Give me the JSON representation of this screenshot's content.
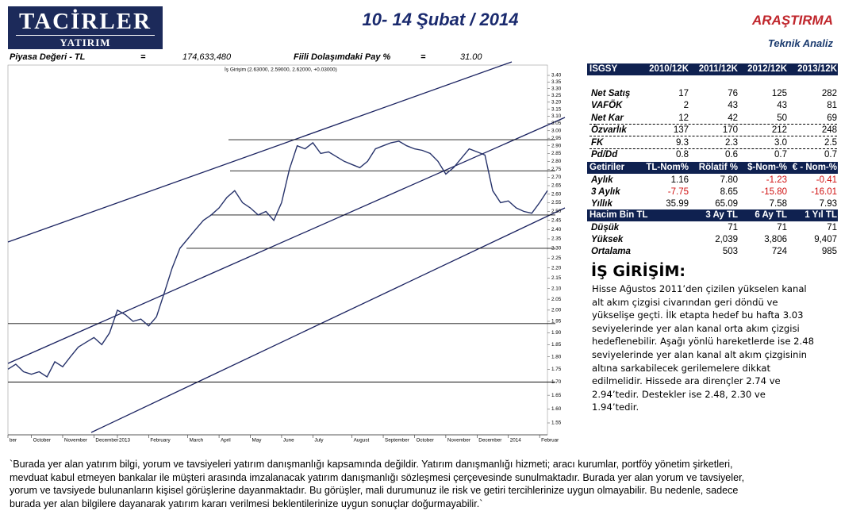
{
  "header": {
    "logo_top": "TACİRLER",
    "logo_bottom": "YATIRIM",
    "title": "10- 14 Şubat / 2014",
    "department": "ARAŞTIRMA",
    "subtitle": "Teknik Analiz"
  },
  "info": {
    "label1": "Piyasa Değeri - TL",
    "eq1": "=",
    "value1": "174,633,480",
    "label2": "Fiili Dolaşımdaki Pay %",
    "eq2": "=",
    "value2": "31.00"
  },
  "chart_data": {
    "type": "line",
    "title": "İş Girişim (2.63000, 2.59000, 2.62000, +0.03000)",
    "color": "#27336b",
    "log_scale": true,
    "values": [
      1.75,
      1.77,
      1.74,
      1.73,
      1.74,
      1.72,
      1.78,
      1.76,
      1.8,
      1.84,
      1.86,
      1.88,
      1.85,
      1.9,
      2.0,
      1.98,
      1.95,
      1.96,
      1.93,
      1.97,
      2.08,
      2.2,
      2.3,
      2.35,
      2.4,
      2.45,
      2.48,
      2.52,
      2.58,
      2.62,
      2.55,
      2.52,
      2.48,
      2.5,
      2.45,
      2.55,
      2.75,
      2.9,
      2.88,
      2.92,
      2.85,
      2.86,
      2.83,
      2.8,
      2.78,
      2.76,
      2.8,
      2.88,
      2.9,
      2.92,
      2.93,
      2.9,
      2.88,
      2.87,
      2.85,
      2.8,
      2.72,
      2.76,
      2.82,
      2.88,
      2.86,
      2.84,
      2.62,
      2.55,
      2.56,
      2.52,
      2.5,
      2.49,
      2.55,
      2.62
    ],
    "xlim": [
      0,
      69
    ],
    "xticks": [
      {
        "value": 0,
        "label": "ber"
      },
      {
        "value": 3,
        "label": "October"
      },
      {
        "value": 7,
        "label": "November"
      },
      {
        "value": 11,
        "label": "December"
      },
      {
        "value": 14,
        "label": "2013"
      },
      {
        "value": 18,
        "label": "February"
      },
      {
        "value": 23,
        "label": "March"
      },
      {
        "value": 27,
        "label": "April"
      },
      {
        "value": 31,
        "label": "May"
      },
      {
        "value": 35,
        "label": "June"
      },
      {
        "value": 39,
        "label": "July"
      },
      {
        "value": 44,
        "label": "August"
      },
      {
        "value": 48,
        "label": "September"
      },
      {
        "value": 52,
        "label": "October"
      },
      {
        "value": 56,
        "label": "November"
      },
      {
        "value": 60,
        "label": "December"
      },
      {
        "value": 64,
        "label": "2014"
      },
      {
        "value": 68,
        "label": "Februar"
      }
    ],
    "ylim": [
      1.55,
      3.4
    ],
    "yticks": [
      {
        "value": 3.4,
        "label": "3.40"
      },
      3.35,
      {
        "value": 3.3,
        "label": "3.30"
      },
      3.25,
      {
        "value": 3.2,
        "label": "3.20"
      },
      3.15,
      {
        "value": 3.1,
        "label": "3.10"
      },
      3.05,
      {
        "value": 3.0,
        "label": "3.00"
      },
      2.95,
      {
        "value": 2.9,
        "label": "2.90"
      },
      2.85,
      {
        "value": 2.8,
        "label": "2.80"
      },
      2.75,
      {
        "value": 2.7,
        "label": "2.70"
      },
      2.65,
      {
        "value": 2.6,
        "label": "2.60"
      },
      2.55,
      {
        "value": 2.5,
        "label": "2.50"
      },
      2.45,
      {
        "value": 2.4,
        "label": "2.40"
      },
      2.35,
      {
        "value": 2.3,
        "label": "2.30"
      },
      2.25,
      {
        "value": 2.2,
        "label": "2.20"
      },
      2.15,
      {
        "value": 2.1,
        "label": "2.10"
      },
      2.05,
      {
        "value": 2.0,
        "label": "2.00"
      },
      1.95,
      {
        "value": 1.9,
        "label": "1.90"
      },
      1.85,
      {
        "value": 1.8,
        "label": "1.80"
      },
      1.75,
      {
        "value": 1.7,
        "label": "1.70"
      },
      1.65,
      {
        "value": 1.6,
        "label": "1.60"
      },
      1.55
    ],
    "levels": [
      2.94,
      2.74,
      2.48,
      2.3,
      1.94,
      1.7
    ]
  },
  "tables": [
    {
      "header": [
        "ISGSY",
        "2010/12K",
        "2011/12K",
        "2012/12K",
        "2013/12K"
      ],
      "rows": [
        [
          "Net Satış",
          "17",
          "76",
          "125",
          "282"
        ],
        [
          "VAFÖK",
          "2",
          "43",
          "43",
          "81"
        ],
        [
          "Net Kar",
          "12",
          "42",
          "50",
          "69"
        ],
        [
          "Özvarlık",
          "137",
          "170",
          "212",
          "248"
        ],
        [
          "FK",
          "9.3",
          "2.3",
          "3.0",
          "2.5"
        ],
        [
          "Pd/Dd",
          "0.8",
          "0.6",
          "0.7",
          "0.7"
        ]
      ]
    },
    {
      "header": [
        "Getiriler",
        "TL-Nom%",
        "Rölatif %",
        "$-Nom-%",
        "€ - Nom-%"
      ],
      "rows": [
        [
          "Aylık",
          "1.16",
          "7.80",
          "-1.23",
          "-0.41"
        ],
        [
          "3 Aylık",
          "-7.75",
          "8.65",
          "-15.80",
          "-16.01"
        ],
        [
          "Yıllık",
          "35.99",
          "65.09",
          "7.58",
          "7.93"
        ]
      ]
    },
    {
      "header": [
        "Hacim Bin TL",
        "3 Ay TL",
        "6 Ay TL",
        "1 Yıl TL"
      ],
      "rows": [
        [
          "Düşük",
          "71",
          "71",
          "71"
        ],
        [
          "Yüksek",
          "2,039",
          "3,806",
          "9,407"
        ],
        [
          "Ortalama",
          "503",
          "724",
          "985"
        ]
      ]
    }
  ],
  "analysis": {
    "title": "İŞ GİRİŞİM:",
    "lines": [
      "Hisse Ağustos 2011’den çizilen yükselen kanal",
      "alt akım çizgisi civarından geri döndü ve",
      "yükselişe geçti. İlk etapta hedef  bu hafta 3.03",
      "seviyelerinde yer alan kanal orta akım çizgisi",
      "hedeflenebilir. Aşağı yönlü hareketlerde ise 2.48",
      "seviyelerinde yer alan kanal alt akım çizgisinin",
      "altına sarkabilecek gerilemelere dikkat",
      "edilmelidir. Hissede ara dirençler 2.74 ve",
      "2.94’tedir. Destekler ise 2.48, 2.30 ve",
      "1.94’tedir."
    ]
  },
  "disclaimer": [
    "`Burada yer alan yatırım bilgi, yorum ve tavsiyeleri yatırım danışmanlığı kapsamında değildir. Yatırım danışmanlığı hizmeti; aracı kurumlar, portföy yönetim şirketleri,",
    "mevduat kabul etmeyen bankalar ile müşteri arasında imzalanacak yatırım danışmanlığı sözleşmesi çerçevesinde sunulmaktadır. Burada yer alan yorum ve tavsiyeler,",
    "yorum ve tavsiyede bulunanların kişisel görüşlerine dayanmaktadır. Bu görüşler, mali durumunuz ile risk ve getiri tercihlerinize uygun olmayabilir. Bu nedenle, sadece",
    "burada yer alan bilgilere dayanarak yatırım kararı verilmesi beklentilerinize uygun sonuçlar doğurmayabilir.`"
  ]
}
